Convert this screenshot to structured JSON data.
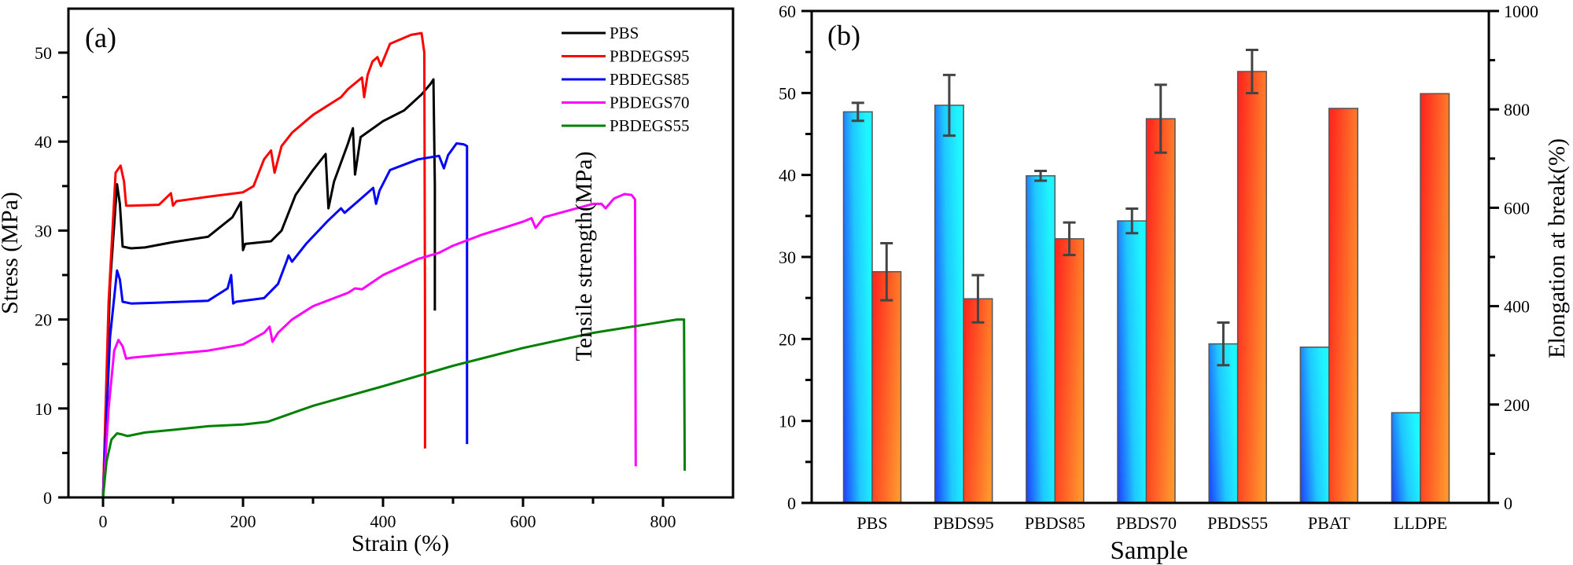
{
  "chart_data": [
    {
      "type": "line",
      "panel_label": "(a)",
      "title": "",
      "xlabel": "Strain (%)",
      "ylabel": "Stress (MPa)",
      "xlim": [
        -50,
        910
      ],
      "ylim": [
        0,
        55
      ],
      "xticks": [
        0,
        200,
        400,
        600,
        800
      ],
      "yticks": [
        0,
        10,
        20,
        30,
        40,
        50
      ],
      "grid": false,
      "legend_position": "top-right",
      "series": [
        {
          "name": "PBS",
          "color": "#000000",
          "x": [
            0,
            10,
            20,
            24,
            28,
            40,
            60,
            100,
            150,
            185,
            197,
            200,
            203,
            240,
            255,
            275,
            300,
            318,
            322,
            330,
            350,
            357,
            360,
            368,
            400,
            430,
            455,
            468,
            472,
            474,
            474
          ],
          "y": [
            0,
            24,
            35.2,
            33,
            28.2,
            28,
            28.1,
            28.7,
            29.3,
            31.5,
            33.2,
            27.8,
            28.5,
            28.8,
            30,
            34,
            36.8,
            38.6,
            32.5,
            35.5,
            39.8,
            41.5,
            36.3,
            40.5,
            42.3,
            43.5,
            45.3,
            46.5,
            47,
            35,
            21
          ]
        },
        {
          "name": "PBDEGS95",
          "color": "#ff0000",
          "x": [
            0,
            8,
            18,
            25,
            30,
            33,
            40,
            80,
            97,
            100,
            105,
            150,
            200,
            215,
            230,
            240,
            245,
            255,
            270,
            300,
            340,
            350,
            370,
            373,
            378,
            385,
            392,
            397,
            410,
            440,
            455,
            459,
            460,
            460
          ],
          "y": [
            0,
            22,
            36.5,
            37.3,
            35.5,
            32.8,
            32.8,
            32.9,
            34.2,
            32.8,
            33.3,
            33.8,
            34.3,
            35,
            38,
            39,
            36.5,
            39.5,
            41,
            43,
            45,
            45.9,
            47.2,
            45,
            47.5,
            49,
            49.5,
            48.5,
            51,
            52,
            52.2,
            50,
            20,
            5.5
          ]
        },
        {
          "name": "PBDEGS85",
          "color": "#0000ff",
          "x": [
            0,
            10,
            20,
            24,
            28,
            40,
            80,
            150,
            178,
            183,
            186,
            190,
            230,
            250,
            262,
            265,
            270,
            290,
            320,
            340,
            345,
            360,
            386,
            390,
            395,
            410,
            450,
            480,
            487,
            493,
            505,
            515,
            520,
            520
          ],
          "y": [
            0,
            18,
            25.5,
            24.5,
            22,
            21.8,
            21.9,
            22.1,
            23.5,
            25,
            21.8,
            22,
            22.4,
            24,
            26.5,
            27.2,
            26.5,
            28.5,
            31,
            32.5,
            32,
            33,
            34.8,
            33,
            34.5,
            36.8,
            38,
            38.4,
            37,
            38.5,
            39.8,
            39.7,
            39.5,
            6
          ]
        },
        {
          "name": "PBDEGS70",
          "color": "#ff00ff",
          "x": [
            0,
            8,
            16,
            22,
            28,
            33,
            40,
            80,
            150,
            200,
            230,
            238,
            242,
            250,
            270,
            300,
            350,
            360,
            370,
            400,
            450,
            480,
            500,
            540,
            600,
            612,
            618,
            630,
            700,
            712,
            718,
            730,
            745,
            755,
            760,
            761
          ],
          "y": [
            0,
            10,
            16.5,
            17.7,
            17,
            15.6,
            15.7,
            16,
            16.5,
            17.2,
            18.5,
            19.2,
            17.5,
            18.5,
            20,
            21.5,
            23,
            23.5,
            23.4,
            25,
            26.8,
            27.5,
            28.3,
            29.5,
            31,
            31.4,
            30.3,
            31.5,
            33,
            33,
            32.5,
            33.6,
            34.1,
            34,
            33.5,
            3.5
          ]
        },
        {
          "name": "PBDEGS55",
          "color": "#008000",
          "x": [
            0,
            5,
            12,
            20,
            26,
            35,
            60,
            100,
            150,
            200,
            235,
            260,
            300,
            400,
            500,
            600,
            700,
            780,
            820,
            830,
            831
          ],
          "y": [
            0,
            4,
            6.5,
            7.2,
            7.1,
            6.9,
            7.3,
            7.6,
            8,
            8.2,
            8.5,
            9.2,
            10.3,
            12.5,
            14.8,
            16.8,
            18.5,
            19.5,
            20,
            20,
            3
          ]
        }
      ]
    },
    {
      "type": "bar",
      "panel_label": "(b)",
      "title": "",
      "xlabel": "Sample",
      "ylabel": "Tensile strength(MPa)",
      "ylabel_right": "Elongation at break(%)",
      "ylim": [
        0,
        60
      ],
      "ylim_right": [
        0,
        1000
      ],
      "yticks": [
        0,
        10,
        20,
        30,
        40,
        50,
        60
      ],
      "yticks_right": [
        0,
        200,
        400,
        600,
        800,
        1000
      ],
      "grid": false,
      "categories": [
        "PBS",
        "PBDS95",
        "PBDS85",
        "PBDS70",
        "PBDS55",
        "PBAT",
        "LLDPE"
      ],
      "series": [
        {
          "name": "Tensile strength",
          "axis": "left",
          "gradient": [
            "#1f3dff",
            "#1ff5ff"
          ],
          "values": [
            47.7,
            48.5,
            39.9,
            34.4,
            19.4,
            19.0,
            11.0
          ],
          "errors": [
            1.1,
            3.7,
            0.6,
            1.5,
            2.6,
            null,
            null
          ]
        },
        {
          "name": "Elongation at break",
          "axis": "right",
          "gradient": [
            "#ff2b1f",
            "#ff962d"
          ],
          "values": [
            470,
            415,
            537,
            781,
            877,
            802,
            832
          ],
          "errors": [
            58,
            48,
            33,
            69,
            44,
            null,
            null
          ]
        }
      ]
    }
  ]
}
